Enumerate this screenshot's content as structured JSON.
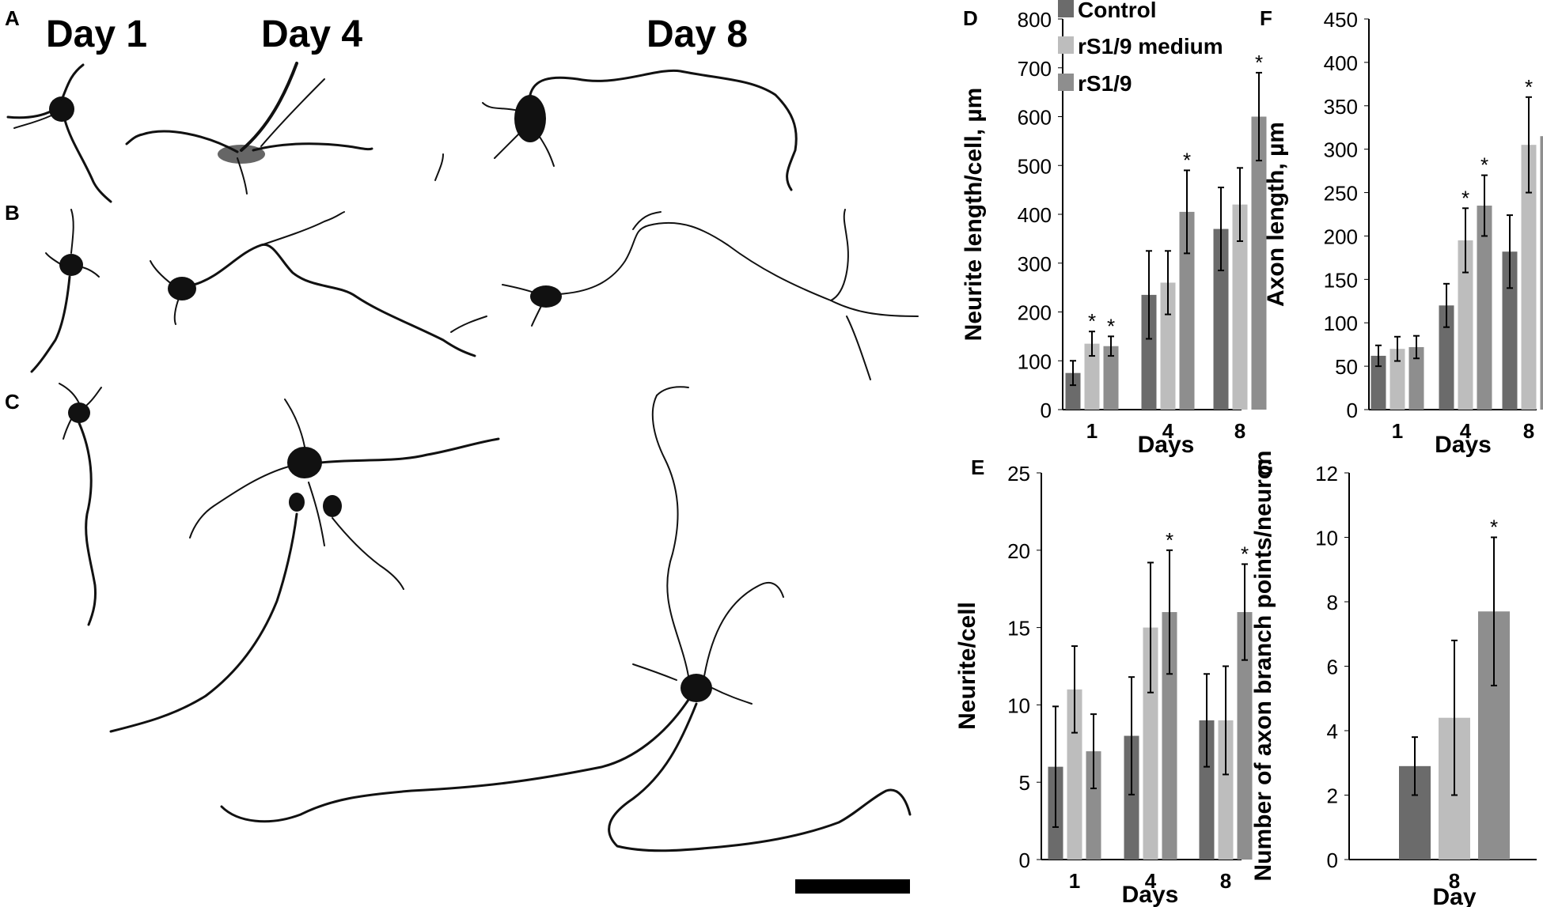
{
  "micrograph": {
    "row_labels": [
      "A",
      "B",
      "C"
    ],
    "day_labels": [
      "Day 1",
      "Day 4",
      "Day 8"
    ]
  },
  "colors": {
    "control": "#6b6b6b",
    "rs19_medium": "#bdbdbd",
    "rs19": "#8e8e8e"
  },
  "chart_data": [
    {
      "id": "D",
      "type": "bar",
      "panel_label": "D",
      "categories": [
        "1",
        "4",
        "8"
      ],
      "xlabel": "Days",
      "ylabel": "Neurite length/cell, µm",
      "ylim": [
        0,
        800
      ],
      "yticks": [
        0,
        100,
        200,
        300,
        400,
        500,
        600,
        700,
        800
      ],
      "legend": {
        "placement": "top-left",
        "entries": [
          "Control",
          "rS1/9 medium",
          "rS1/9"
        ]
      },
      "series": [
        {
          "name": "Control",
          "values": [
            75,
            235,
            370
          ],
          "errors": [
            25,
            90,
            85
          ],
          "sig": [
            false,
            false,
            false
          ]
        },
        {
          "name": "rS1/9 medium",
          "values": [
            135,
            260,
            420
          ],
          "errors": [
            25,
            65,
            75
          ],
          "sig": [
            true,
            false,
            false
          ]
        },
        {
          "name": "rS1/9",
          "values": [
            130,
            405,
            600
          ],
          "errors": [
            20,
            85,
            90
          ],
          "sig": [
            true,
            true,
            true
          ]
        }
      ]
    },
    {
      "id": "F",
      "type": "bar",
      "panel_label": "F",
      "categories": [
        "1",
        "4",
        "8"
      ],
      "xlabel": "Days",
      "ylabel": "Axon length, µm",
      "ylim": [
        0,
        450
      ],
      "yticks": [
        0,
        50,
        100,
        150,
        200,
        250,
        300,
        350,
        400,
        450
      ],
      "series": [
        {
          "name": "Control",
          "values": [
            62,
            120,
            182
          ],
          "errors": [
            12,
            25,
            42
          ],
          "sig": [
            false,
            false,
            false
          ]
        },
        {
          "name": "rS1/9 medium",
          "values": [
            70,
            195,
            305
          ],
          "errors": [
            14,
            37,
            55
          ],
          "sig": [
            false,
            true,
            true
          ]
        },
        {
          "name": "rS1/9",
          "values": [
            72,
            235,
            315
          ],
          "errors": [
            13,
            35,
            67
          ],
          "sig": [
            false,
            true,
            true
          ]
        }
      ]
    },
    {
      "id": "E",
      "type": "bar",
      "panel_label": "E",
      "categories": [
        "1",
        "4",
        "8"
      ],
      "xlabel": "Days",
      "ylabel": "Neurite/cell",
      "ylim": [
        0,
        25
      ],
      "yticks": [
        0,
        5,
        10,
        15,
        20,
        25
      ],
      "series": [
        {
          "name": "Control",
          "values": [
            6,
            8,
            9
          ],
          "errors": [
            3.9,
            3.8,
            3
          ],
          "sig": [
            false,
            false,
            false
          ]
        },
        {
          "name": "rS1/9 medium",
          "values": [
            11,
            15,
            9
          ],
          "errors": [
            2.8,
            4.2,
            3.5
          ],
          "sig": [
            false,
            false,
            false
          ]
        },
        {
          "name": "rS1/9",
          "values": [
            7,
            16,
            16
          ],
          "errors": [
            2.4,
            4,
            3.1
          ],
          "sig": [
            false,
            true,
            true
          ]
        }
      ]
    },
    {
      "id": "G",
      "type": "bar",
      "panel_label": "G",
      "categories": [
        "8"
      ],
      "xlabel": "Day",
      "ylabel": "Number of axon branch points/neuron",
      "ylim": [
        0,
        12
      ],
      "yticks": [
        0,
        2,
        4,
        6,
        8,
        10,
        12
      ],
      "series": [
        {
          "name": "Control",
          "values": [
            2.9
          ],
          "errors": [
            0.9
          ],
          "sig": [
            false
          ]
        },
        {
          "name": "rS1/9 medium",
          "values": [
            4.4
          ],
          "errors": [
            2.4
          ],
          "sig": [
            false
          ]
        },
        {
          "name": "rS1/9",
          "values": [
            7.7
          ],
          "errors": [
            2.3
          ],
          "sig": [
            true
          ]
        }
      ]
    }
  ]
}
